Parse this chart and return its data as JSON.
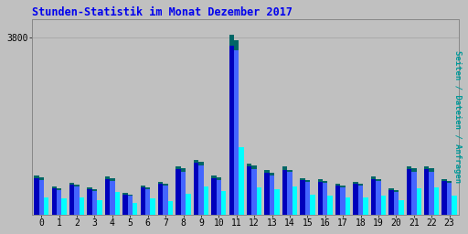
{
  "title": "Stunden-Statistik im Monat Dezember 2017",
  "title_color": "#0000EE",
  "background_color": "#C0C0C0",
  "ylabel_right": "Seiten / Dateien / Anfragen",
  "categories": [
    0,
    1,
    2,
    3,
    4,
    5,
    6,
    7,
    8,
    9,
    10,
    11,
    12,
    13,
    14,
    15,
    16,
    17,
    18,
    19,
    20,
    21,
    22,
    23
  ],
  "seiten": [
    840,
    600,
    680,
    580,
    820,
    460,
    620,
    700,
    1040,
    1180,
    840,
    3860,
    1100,
    960,
    1030,
    790,
    760,
    660,
    710,
    820,
    560,
    1040,
    1040,
    770
  ],
  "dateien": [
    800,
    570,
    640,
    550,
    780,
    430,
    590,
    660,
    990,
    1130,
    800,
    3760,
    1050,
    900,
    970,
    750,
    720,
    620,
    660,
    770,
    520,
    990,
    990,
    730
  ],
  "anfragen": [
    380,
    345,
    375,
    310,
    480,
    245,
    345,
    300,
    450,
    610,
    510,
    1450,
    590,
    540,
    610,
    430,
    410,
    375,
    375,
    420,
    320,
    570,
    580,
    410
  ],
  "color_bar1": "#0000BB",
  "color_bar2": "#4466FF",
  "color_bar3": "#00FFFF",
  "color_cap": "#006666",
  "ylim_max": 4200,
  "ytick_val": 3800,
  "grid_color": "#AAAAAA",
  "bar_width": 0.28
}
